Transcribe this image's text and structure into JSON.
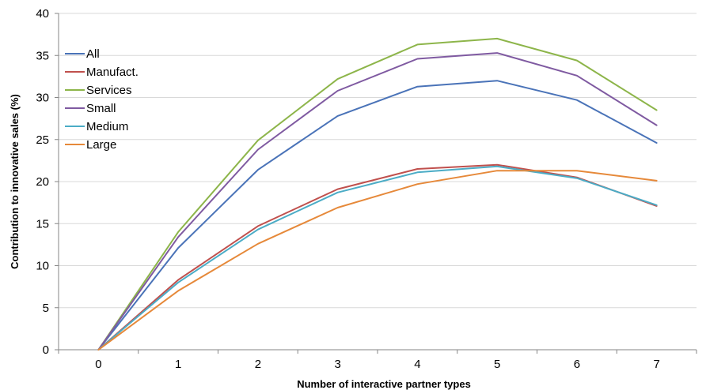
{
  "chart_data": {
    "type": "line",
    "title": "",
    "xlabel": "Number of interactive partner types",
    "ylabel": "Contribution to innovative sales (%)",
    "x": [
      0,
      1,
      2,
      3,
      4,
      5,
      6,
      7
    ],
    "xlim": [
      -0.5,
      7.5
    ],
    "ylim": [
      0,
      40
    ],
    "yticks": [
      0,
      5,
      10,
      15,
      20,
      25,
      30,
      35,
      40
    ],
    "xticks": [
      0,
      1,
      2,
      3,
      4,
      5,
      6,
      7
    ],
    "grid": "horizontal",
    "legend_position": "top-left",
    "series": [
      {
        "name": "All",
        "color": "#4a73b8",
        "values": [
          0,
          12.1,
          21.4,
          27.8,
          31.3,
          32.0,
          29.7,
          24.6
        ]
      },
      {
        "name": "Manufact.",
        "color": "#c0504d",
        "values": [
          0,
          8.3,
          14.7,
          19.1,
          21.5,
          22.0,
          20.5,
          17.1
        ]
      },
      {
        "name": "Services",
        "color": "#8db54a",
        "values": [
          0,
          14.0,
          24.9,
          32.2,
          36.3,
          37.0,
          34.4,
          28.5
        ]
      },
      {
        "name": "Small",
        "color": "#7f5aa1",
        "values": [
          0,
          13.4,
          23.8,
          30.8,
          34.6,
          35.3,
          32.6,
          26.7
        ]
      },
      {
        "name": "Medium",
        "color": "#4bacc6",
        "values": [
          0,
          8.0,
          14.3,
          18.7,
          21.1,
          21.8,
          20.4,
          17.2
        ]
      },
      {
        "name": "Large",
        "color": "#e6893a",
        "values": [
          0,
          7.0,
          12.6,
          16.9,
          19.7,
          21.3,
          21.3,
          20.1
        ]
      }
    ]
  }
}
